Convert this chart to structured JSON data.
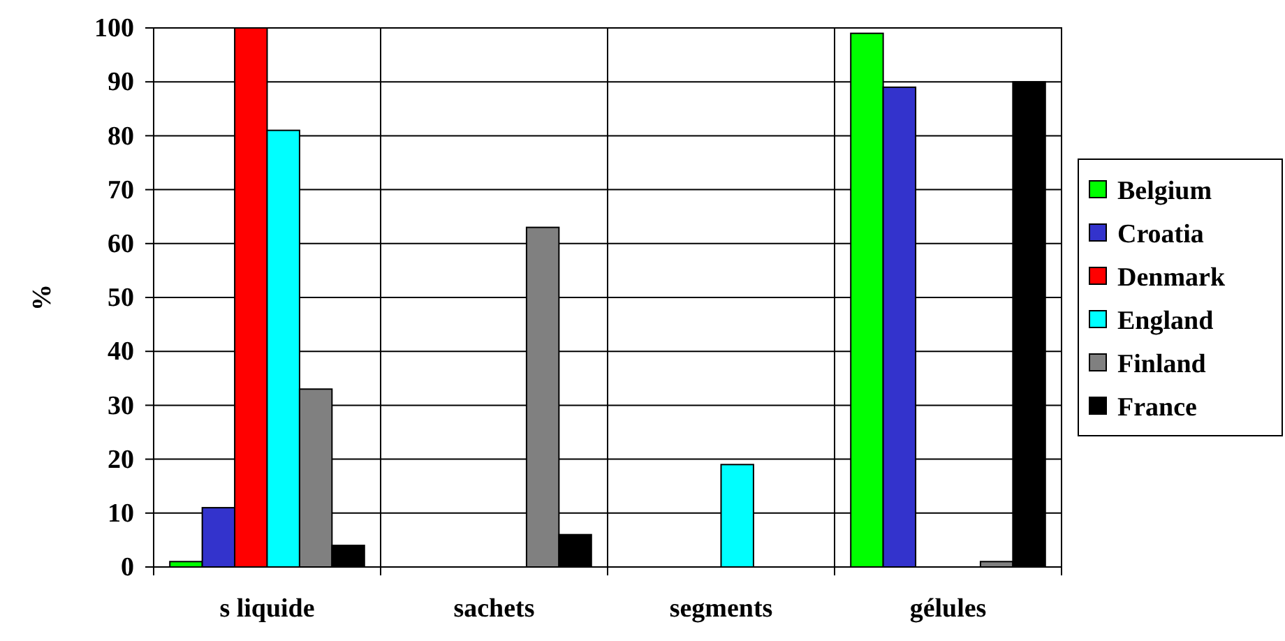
{
  "chart_data": {
    "type": "bar",
    "ylabel": "%",
    "categories": [
      "s liquide",
      "sachets",
      "segments",
      "gélules"
    ],
    "series": [
      {
        "name": "Belgium",
        "color": "#00ff00",
        "values": [
          1,
          0,
          0,
          99
        ]
      },
      {
        "name": "Croatia",
        "color": "#3333cc",
        "values": [
          11,
          0,
          0,
          89
        ]
      },
      {
        "name": "Denmark",
        "color": "#ff0000",
        "values": [
          100,
          0,
          0,
          0
        ]
      },
      {
        "name": "England",
        "color": "#00ffff",
        "values": [
          81,
          0,
          19,
          0
        ]
      },
      {
        "name": "Finland",
        "color": "#808080",
        "values": [
          33,
          63,
          0,
          1
        ]
      },
      {
        "name": "France",
        "color": "#000000",
        "values": [
          4,
          6,
          0,
          90
        ]
      }
    ],
    "ylim": [
      0,
      100
    ],
    "yticks": [
      0,
      10,
      20,
      30,
      40,
      50,
      60,
      70,
      80,
      90,
      100
    ],
    "grid": true,
    "legend": "right"
  }
}
